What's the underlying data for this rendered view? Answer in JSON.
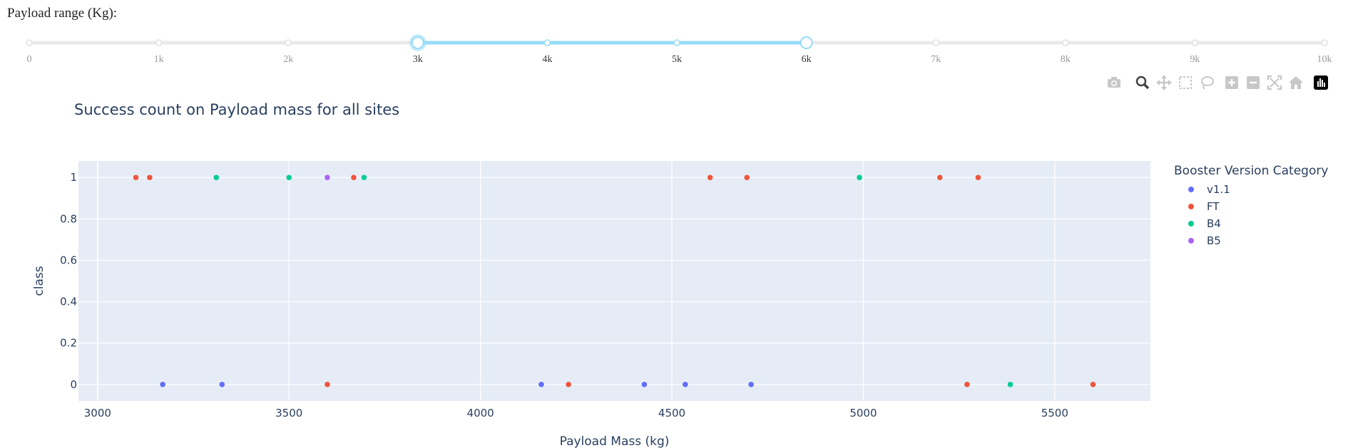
{
  "slider": {
    "label": "Payload range (Kg):",
    "min": 0,
    "max": 10000,
    "value_low": 3000,
    "value_high": 6000,
    "marks": [
      "0",
      "1k",
      "2k",
      "3k",
      "4k",
      "5k",
      "6k",
      "7k",
      "8k",
      "9k",
      "10k"
    ],
    "colors": {
      "track": "#e9e9e9",
      "active": "#96dbfa",
      "handle_border": "#96dbfa",
      "mark_active": "#333333",
      "mark_inactive": "#999999"
    }
  },
  "modebar": {
    "buttons": [
      "camera-icon",
      "zoom-icon",
      "pan-icon",
      "box-select-icon",
      "lasso-select-icon",
      "zoom-in-icon",
      "zoom-out-icon",
      "autoscale-icon",
      "reset-axes-icon",
      "plotly-logo-icon"
    ]
  },
  "chart_data": {
    "type": "scatter",
    "title": "Success count on Payload mass for all sites",
    "xlabel": "Payload Mass (kg)",
    "ylabel": "class",
    "xlim": [
      2950,
      5750
    ],
    "ylim": [
      -0.08,
      1.08
    ],
    "xticks": [
      3000,
      3500,
      4000,
      4500,
      5000,
      5500
    ],
    "yticks": [
      0,
      0.2,
      0.4,
      0.6,
      0.8,
      1
    ],
    "grid": true,
    "legend_title": "Booster Version Category",
    "legend_position": "right",
    "plot_bg": "#e5ecf6",
    "series": [
      {
        "name": "v1.1",
        "color": "#636efa",
        "points": [
          [
            3170,
            0
          ],
          [
            3325,
            0
          ],
          [
            4159,
            0
          ],
          [
            4428,
            0
          ],
          [
            4535,
            0
          ],
          [
            4707,
            0
          ]
        ]
      },
      {
        "name": "FT",
        "color": "#ef553b",
        "points": [
          [
            3100,
            1
          ],
          [
            3136,
            1
          ],
          [
            3600,
            0
          ],
          [
            3669,
            1
          ],
          [
            4230,
            0
          ],
          [
            4600,
            1
          ],
          [
            4696,
            1
          ],
          [
            5200,
            1
          ],
          [
            5271,
            0
          ],
          [
            5300,
            1
          ],
          [
            5600,
            0
          ]
        ]
      },
      {
        "name": "B4",
        "color": "#00cc96",
        "points": [
          [
            3310,
            1
          ],
          [
            3500,
            1
          ],
          [
            3696,
            1
          ],
          [
            4990,
            1
          ],
          [
            5384,
            0
          ]
        ]
      },
      {
        "name": "B5",
        "color": "#ab63fa",
        "points": [
          [
            3600,
            1
          ]
        ]
      }
    ]
  }
}
